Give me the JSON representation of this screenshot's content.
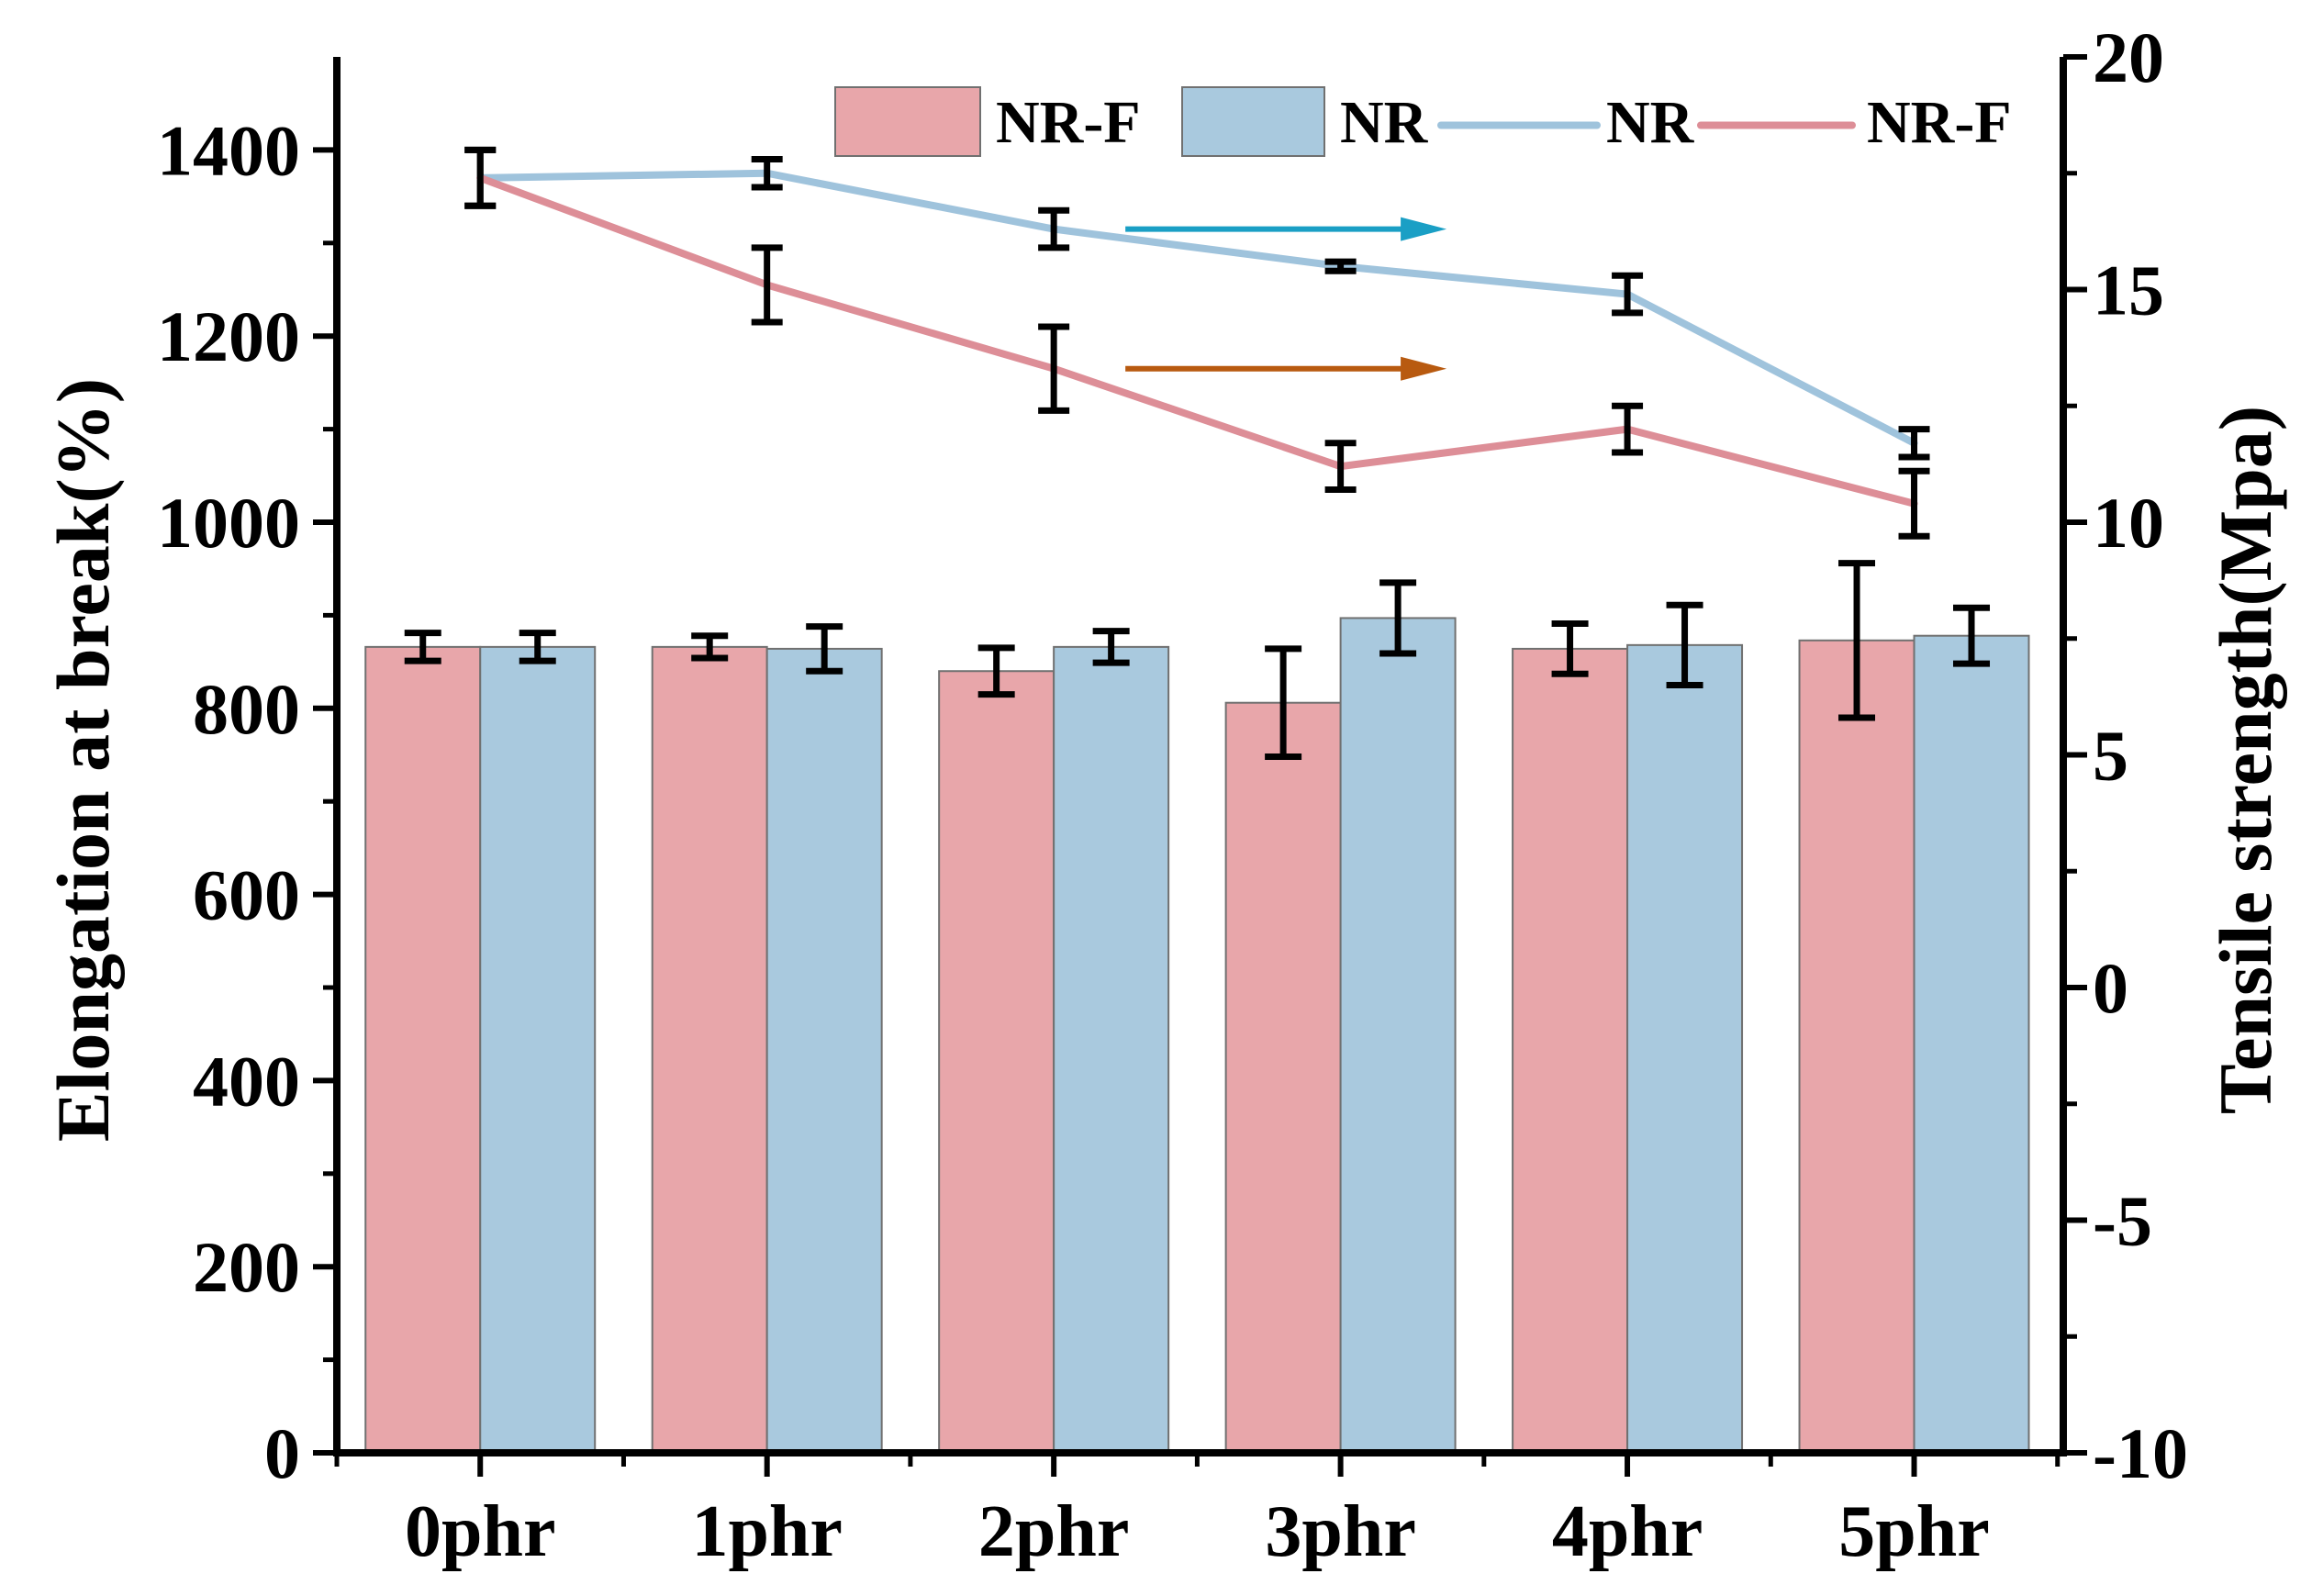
{
  "chart_data": {
    "type": "bar",
    "categories": [
      "0phr",
      "1phr",
      "2phr",
      "3phr",
      "4phr",
      "5phr"
    ],
    "ylabel_left": "Elongation at break(%)",
    "ylabel_right": "Tensile strength(Mpa)",
    "ylim_left": [
      0,
      1500
    ],
    "ylim_right": [
      -10,
      20
    ],
    "yticks_left": [
      "0",
      "200",
      "400",
      "600",
      "800",
      "1000",
      "1200",
      "1400"
    ],
    "yticks_right": [
      "-10",
      "-5",
      "0",
      "5",
      "10",
      "15",
      "20"
    ],
    "yticks_left_values": [
      0,
      200,
      400,
      600,
      800,
      1000,
      1200,
      1400
    ],
    "yticks_right_values": [
      -10,
      -5,
      0,
      5,
      10,
      15,
      20
    ],
    "bars": [
      {
        "name": "NR-F",
        "color": "#e8a6aa",
        "values": [
          866,
          866,
          840,
          806,
          864,
          873
        ],
        "errors": [
          15,
          12,
          25,
          58,
          27,
          83
        ]
      },
      {
        "name": "NR",
        "color": "#a9c9de",
        "values": [
          866,
          864,
          866,
          897,
          868,
          878
        ],
        "errors": [
          15,
          24,
          17,
          38,
          43,
          30
        ]
      }
    ],
    "lines": [
      {
        "name": "NR",
        "color": "#9fc3dc",
        "values": [
          17.4,
          17.5,
          16.3,
          15.5,
          14.9,
          11.7
        ],
        "errors": [
          0.6,
          0.3,
          0.4,
          0.1,
          0.4,
          0.3
        ]
      },
      {
        "name": "NR-F",
        "color": "#dd8e97",
        "values": [
          17.4,
          15.1,
          13.3,
          11.2,
          12.0,
          10.4
        ],
        "errors": [
          0.6,
          0.8,
          0.9,
          0.5,
          0.5,
          0.7
        ]
      }
    ],
    "arrows": [
      {
        "from_category": "2phr",
        "series": "NR",
        "color": "#1a9fc5"
      },
      {
        "from_category": "2phr",
        "series": "NR-F",
        "color": "#b85a10"
      }
    ],
    "legend": {
      "position": "top-right",
      "entries": [
        {
          "label": "NR-F",
          "kind": "bar",
          "color": "#e8a6aa"
        },
        {
          "label": "NR",
          "kind": "bar",
          "color": "#a9c9de"
        },
        {
          "label": "NR",
          "kind": "line",
          "color": "#9fc3dc"
        },
        {
          "label": "NR-F",
          "kind": "line",
          "color": "#dd8e97"
        }
      ]
    }
  }
}
